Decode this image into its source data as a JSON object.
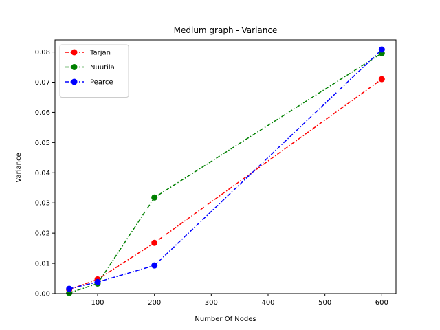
{
  "chart_data": {
    "type": "line",
    "title": "Medium graph - Variance",
    "xlabel": "Number Of Nodes",
    "ylabel": "Variance",
    "x": [
      50,
      100,
      200,
      600
    ],
    "xlim": [
      25,
      625
    ],
    "ylim": [
      0,
      0.084
    ],
    "xticks": [
      100,
      200,
      300,
      400,
      500,
      600
    ],
    "yticks": [
      0.0,
      0.01,
      0.02,
      0.03,
      0.04,
      0.05,
      0.06,
      0.07,
      0.08
    ],
    "xtick_labels": [
      "100",
      "200",
      "300",
      "400",
      "500",
      "600"
    ],
    "ytick_labels": [
      "0.00",
      "0.01",
      "0.02",
      "0.03",
      "0.04",
      "0.05",
      "0.06",
      "0.07",
      "0.08"
    ],
    "grid": false,
    "legend_position": "top-left",
    "series": [
      {
        "name": "Tarjan",
        "values": [
          0.0013,
          0.0047,
          0.0168,
          0.071
        ],
        "color": "#ff0000"
      },
      {
        "name": "Nuutila",
        "values": [
          0.0002,
          0.0033,
          0.0318,
          0.0796
        ],
        "color": "#008000"
      },
      {
        "name": "Pearce",
        "values": [
          0.0016,
          0.0038,
          0.0093,
          0.0808
        ],
        "color": "#0000ff"
      }
    ]
  }
}
